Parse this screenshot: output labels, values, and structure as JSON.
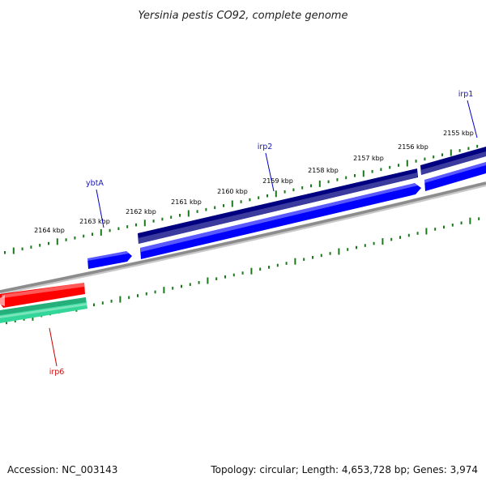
{
  "title": "Yersinia pestis CO92, complete genome",
  "footer": {
    "accession": "Accession: NC_003143",
    "summary": "Topology: circular; Length: 4,653,728 bp; Genes: 3,974"
  },
  "colors": {
    "tick": "#1a7a1a",
    "backbone": "#8c8c8c",
    "forward_cds_a": "#000080",
    "forward_cds_b": "#0000ff",
    "reverse_cds_a": "#ff0000",
    "reverse_cds_b": "#33d699",
    "label_blue": "#1515b0",
    "label_red": "#cc1111",
    "leader_blue": "#0000cc",
    "leader_red": "#cc0000"
  },
  "scale_labels": [
    "2155 kbp",
    "2156 kbp",
    "2157 kbp",
    "2158 kbp",
    "2159 kbp",
    "2160 kbp",
    "2161 kbp",
    "2162 kbp",
    "2163 kbp",
    "2164 kbp"
  ],
  "gene_labels": [
    {
      "id": "irp1",
      "text": "irp1",
      "color": "label_blue"
    },
    {
      "id": "irp2",
      "text": "irp2",
      "color": "label_blue"
    },
    {
      "id": "ybtA",
      "text": "ybtA",
      "color": "label_blue"
    },
    {
      "id": "irp6",
      "text": "irp6",
      "color": "label_red"
    }
  ]
}
